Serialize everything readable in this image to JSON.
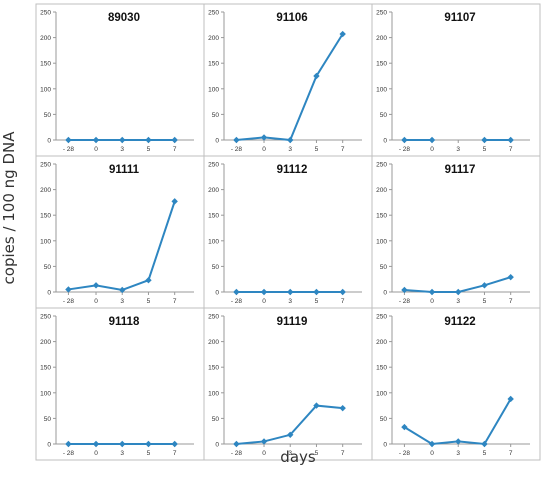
{
  "colors": {
    "line": "#2e86c1",
    "axis": "#999999",
    "frame": "#bfbfbf",
    "text": "#333333"
  },
  "chart_data": {
    "type": "line",
    "ylabel": "copies / 100 ng DNA",
    "xlabel": "days",
    "categories": [
      "- 28",
      "0",
      "3",
      "5",
      "7"
    ],
    "ylim": [
      0,
      250
    ],
    "yticks": [
      "0",
      "50",
      "100",
      "150",
      "200",
      "250"
    ],
    "grid": false,
    "panels": [
      {
        "title": "89030",
        "values": [
          0,
          0,
          0,
          0,
          0
        ]
      },
      {
        "title": "91106",
        "values": [
          0,
          5,
          0,
          125,
          207
        ]
      },
      {
        "title": "91107",
        "values": [
          0,
          0,
          null,
          0,
          0
        ]
      },
      {
        "title": "91111",
        "values": [
          5,
          13,
          4,
          23,
          177
        ]
      },
      {
        "title": "91112",
        "values": [
          0,
          0,
          0,
          0,
          0
        ]
      },
      {
        "title": "91117",
        "values": [
          4,
          0,
          0,
          13,
          29
        ]
      },
      {
        "title": "91118",
        "values": [
          0,
          0,
          0,
          0,
          0
        ]
      },
      {
        "title": "91119",
        "values": [
          0,
          5,
          18,
          75,
          70
        ]
      },
      {
        "title": "91122",
        "values": [
          33,
          0,
          5,
          0,
          88
        ]
      }
    ]
  }
}
